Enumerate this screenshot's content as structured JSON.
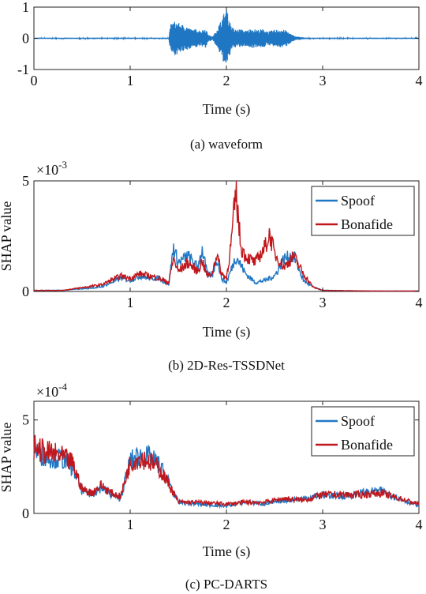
{
  "chart_data": [
    {
      "type": "line",
      "panel": "waveform",
      "caption": "(a) waveform",
      "xlabel": "Time (s)",
      "ylabel": "",
      "xlim": [
        0,
        4
      ],
      "ylim": [
        -1,
        1
      ],
      "xticks": [
        "0",
        "1",
        "2",
        "3",
        "4"
      ],
      "yticks": [
        "-1",
        "0",
        "1"
      ],
      "exponent": "",
      "legend": [],
      "colors": {
        "waveform": "#1f77c4"
      },
      "envelope": {
        "x": [
          0,
          1.4,
          1.42,
          1.46,
          1.5,
          1.56,
          1.6,
          1.64,
          1.7,
          1.74,
          1.78,
          1.82,
          1.86,
          1.9,
          1.94,
          1.98,
          2.0,
          2.02,
          2.06,
          2.1,
          2.14,
          2.2,
          2.26,
          2.32,
          2.38,
          2.44,
          2.5,
          2.56,
          2.62,
          2.68,
          2.72,
          2.76,
          2.8,
          2.84,
          4.0
        ],
        "amp": [
          0.02,
          0.02,
          0.45,
          0.55,
          0.5,
          0.42,
          0.38,
          0.28,
          0.3,
          0.25,
          0.33,
          0.1,
          0.06,
          0.3,
          0.55,
          0.85,
          1.0,
          0.7,
          0.35,
          0.28,
          0.3,
          0.25,
          0.32,
          0.28,
          0.3,
          0.22,
          0.28,
          0.3,
          0.26,
          0.12,
          0.06,
          0.05,
          0.03,
          0.02,
          0.02
        ]
      }
    },
    {
      "type": "line",
      "panel": "2D-Res-TSSDNet",
      "caption": "(b) 2D-Res-TSSDNet",
      "xlabel": "Time (s)",
      "ylabel": "SHAP value",
      "xlim": [
        0,
        4
      ],
      "ylim": [
        0,
        5
      ],
      "xticks": [
        "1",
        "2",
        "3",
        "4"
      ],
      "yticks": [
        "0",
        "5"
      ],
      "exponent": "×10",
      "exponent_power": "-3",
      "legend": [
        "Spoof",
        "Bonafide"
      ],
      "series": [
        {
          "name": "Spoof",
          "color": "#1f77c4",
          "x": [
            0,
            0.3,
            0.7,
            0.9,
            1.0,
            1.1,
            1.2,
            1.3,
            1.4,
            1.45,
            1.5,
            1.6,
            1.7,
            1.75,
            1.8,
            1.85,
            1.9,
            1.95,
            2.0,
            2.1,
            2.15,
            2.2,
            2.3,
            2.4,
            2.5,
            2.6,
            2.7,
            2.8,
            2.9,
            3.0,
            3.5,
            4.0
          ],
          "y": [
            0.05,
            0.05,
            0.2,
            0.6,
            0.5,
            0.7,
            0.6,
            0.6,
            0.3,
            2.0,
            1.3,
            1.6,
            1.1,
            1.9,
            0.8,
            0.7,
            1.5,
            0.6,
            0.4,
            1.6,
            1.2,
            0.8,
            0.4,
            0.5,
            0.7,
            1.5,
            1.6,
            0.5,
            0.2,
            0.05,
            0.02,
            0.02
          ]
        },
        {
          "name": "Bonafide",
          "color": "#c0171d",
          "x": [
            0,
            0.3,
            0.7,
            0.9,
            1.0,
            1.1,
            1.2,
            1.3,
            1.4,
            1.45,
            1.5,
            1.6,
            1.7,
            1.75,
            1.8,
            1.85,
            1.9,
            1.95,
            2.0,
            2.05,
            2.1,
            2.15,
            2.2,
            2.3,
            2.4,
            2.45,
            2.5,
            2.6,
            2.7,
            2.8,
            2.9,
            3.0,
            3.5,
            4.0
          ],
          "y": [
            0.05,
            0.05,
            0.3,
            0.7,
            0.6,
            0.8,
            0.7,
            0.6,
            0.4,
            1.5,
            0.9,
            1.3,
            0.9,
            1.4,
            0.7,
            0.8,
            1.7,
            0.8,
            0.6,
            2.2,
            4.5,
            2.0,
            1.6,
            1.3,
            2.0,
            2.6,
            1.7,
            1.1,
            1.6,
            0.8,
            0.2,
            0.05,
            0.02,
            0.02
          ]
        }
      ]
    },
    {
      "type": "line",
      "panel": "PC-DARTS",
      "caption": "(c) PC-DARTS",
      "xlabel": "Time (s)",
      "ylabel": "SHAP value",
      "xlim": [
        0,
        4
      ],
      "ylim": [
        0,
        6
      ],
      "xticks": [
        "1",
        "2",
        "3",
        "4"
      ],
      "yticks": [
        "0",
        "5"
      ],
      "exponent": "×10",
      "exponent_power": "-4",
      "legend": [
        "Spoof",
        "Bonafide"
      ],
      "series": [
        {
          "name": "Spoof",
          "color": "#1f77c4",
          "x": [
            0,
            0.1,
            0.2,
            0.3,
            0.4,
            0.5,
            0.6,
            0.7,
            0.8,
            0.9,
            1.0,
            1.1,
            1.2,
            1.3,
            1.4,
            1.5,
            1.7,
            2.0,
            2.2,
            2.4,
            2.6,
            2.8,
            3.0,
            3.2,
            3.4,
            3.6,
            3.8,
            4.0
          ],
          "y": [
            3.4,
            3.1,
            3.0,
            2.9,
            2.5,
            1.2,
            1.0,
            1.4,
            1.0,
            0.8,
            2.8,
            3.1,
            3.0,
            2.6,
            1.7,
            0.6,
            0.5,
            0.4,
            0.6,
            0.5,
            0.7,
            0.8,
            1.0,
            0.9,
            1.1,
            1.2,
            0.8,
            0.4
          ]
        },
        {
          "name": "Bonafide",
          "color": "#c0171d",
          "x": [
            0,
            0.1,
            0.2,
            0.3,
            0.4,
            0.5,
            0.6,
            0.7,
            0.8,
            0.9,
            1.0,
            1.1,
            1.2,
            1.3,
            1.4,
            1.5,
            1.7,
            2.0,
            2.2,
            2.4,
            2.6,
            2.8,
            3.0,
            3.2,
            3.4,
            3.6,
            3.8,
            4.0
          ],
          "y": [
            3.6,
            3.3,
            3.2,
            3.0,
            2.7,
            1.3,
            1.1,
            1.5,
            1.1,
            0.9,
            2.7,
            3.0,
            2.8,
            2.4,
            1.6,
            0.6,
            0.6,
            0.5,
            0.6,
            0.6,
            0.8,
            0.7,
            1.0,
            1.0,
            1.0,
            1.1,
            0.8,
            0.5
          ]
        }
      ]
    }
  ]
}
